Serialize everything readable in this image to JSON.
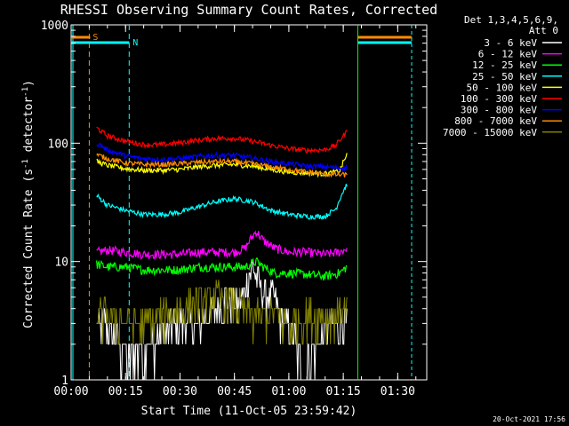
{
  "chart_data": {
    "type": "line",
    "title": "RHESSI Observing Summary Count Rates, Corrected",
    "xlabel": "Start Time (11-Oct-05 23:59:42)",
    "ylabel_main": "Corrected Count Rate (s",
    "ylabel_sup1": "-1",
    "ylabel_mid": " detector",
    "ylabel_sup2": "-1",
    "ylabel_end": ")",
    "yscale": "log",
    "ylim": [
      1,
      1000
    ],
    "xlim_min": [
      0,
      98
    ],
    "x_ticks": [
      {
        "min": 0,
        "label": "00:00"
      },
      {
        "min": 15,
        "label": "00:15"
      },
      {
        "min": 30,
        "label": "00:30"
      },
      {
        "min": 45,
        "label": "00:45"
      },
      {
        "min": 60,
        "label": "01:00"
      },
      {
        "min": 75,
        "label": "01:15"
      },
      {
        "min": 90,
        "label": "01:30"
      }
    ],
    "y_ticks": [
      {
        "value": 1,
        "label": "1"
      },
      {
        "value": 10,
        "label": "10"
      },
      {
        "value": 100,
        "label": "100"
      },
      {
        "value": 1000,
        "label": "1000"
      }
    ],
    "legend_header": [
      "Det 1,3,4,5,6,9,",
      "Att 0"
    ],
    "legend_position": "right",
    "timestamp": "20-Oct-2021 17:56",
    "markers": [
      {
        "label": "S",
        "color": "#ff8c00",
        "min": 5
      },
      {
        "label": "N",
        "color": "#00ffff",
        "min": 16
      }
    ],
    "series": [
      {
        "name": "3 - 6 keV",
        "color": "#ffffff",
        "x": [
          7,
          10,
          13,
          16,
          20,
          25,
          30,
          35,
          40,
          43,
          46,
          48,
          50,
          52,
          54,
          56,
          58,
          60,
          63,
          66,
          70,
          73,
          76
        ],
        "y": [
          3,
          3,
          2,
          1.5,
          1.8,
          2.5,
          3,
          3,
          4,
          5,
          4,
          6,
          9,
          6,
          5,
          5,
          3,
          3,
          1.5,
          1.5,
          2.5,
          3,
          3
        ]
      },
      {
        "name": "6 - 12 keV",
        "color": "#ff00ff",
        "x": [
          7,
          10,
          15,
          20,
          25,
          30,
          35,
          40,
          45,
          48,
          51,
          53,
          56,
          60,
          65,
          70,
          74,
          76
        ],
        "y": [
          12,
          12.5,
          12,
          11.5,
          11.5,
          11.5,
          12,
          12,
          12,
          13,
          18,
          15,
          13,
          12,
          12,
          11.5,
          12,
          13
        ]
      },
      {
        "name": "12 - 25 keV",
        "color": "#00ff00",
        "x": [
          7,
          10,
          15,
          20,
          25,
          30,
          35,
          40,
          45,
          48,
          51,
          53,
          56,
          60,
          65,
          70,
          74,
          76
        ],
        "y": [
          9.5,
          9,
          9,
          8.5,
          8.5,
          8.5,
          9,
          9,
          9,
          9,
          10,
          9,
          8,
          8,
          7.8,
          7.5,
          8,
          9
        ]
      },
      {
        "name": "25 - 50 keV",
        "color": "#00ffff",
        "x": [
          7,
          10,
          15,
          20,
          25,
          30,
          35,
          40,
          45,
          50,
          55,
          60,
          65,
          70,
          73,
          76
        ],
        "y": [
          36,
          30,
          27,
          25,
          25,
          26,
          29,
          32,
          34,
          32,
          27,
          25,
          24,
          24,
          28,
          45
        ]
      },
      {
        "name": "50 - 100 keV",
        "color": "#ffff00",
        "x": [
          7,
          10,
          15,
          20,
          25,
          30,
          35,
          40,
          45,
          50,
          55,
          60,
          65,
          70,
          74,
          76
        ],
        "y": [
          70,
          65,
          61,
          59,
          59,
          60,
          63,
          65,
          66,
          64,
          60,
          57,
          56,
          55,
          58,
          80
        ]
      },
      {
        "name": "100 - 300 keV",
        "color": "#ff0000",
        "x": [
          7,
          10,
          15,
          20,
          25,
          30,
          35,
          40,
          45,
          50,
          55,
          60,
          65,
          70,
          73,
          76
        ],
        "y": [
          135,
          115,
          104,
          97,
          97,
          101,
          106,
          110,
          110,
          104,
          96,
          90,
          87,
          88,
          96,
          125
        ]
      },
      {
        "name": "300 - 800 keV",
        "color": "#0000ff",
        "x": [
          7,
          10,
          15,
          20,
          25,
          30,
          35,
          40,
          45,
          50,
          55,
          60,
          65,
          70,
          74,
          76
        ],
        "y": [
          100,
          88,
          78,
          74,
          73,
          74,
          77,
          79,
          79,
          75,
          70,
          67,
          64,
          63,
          62,
          62
        ]
      },
      {
        "name": "800 - 7000 keV",
        "color": "#ff8c00",
        "x": [
          7,
          10,
          15,
          20,
          25,
          30,
          35,
          40,
          45,
          50,
          55,
          60,
          65,
          70,
          74,
          76
        ],
        "y": [
          80,
          74,
          68,
          66,
          66,
          67,
          69,
          70,
          70,
          67,
          63,
          60,
          57,
          55,
          54,
          54
        ]
      },
      {
        "name": "7000 - 15000 keV",
        "color": "#808000",
        "x": [
          7,
          10,
          15,
          20,
          25,
          30,
          35,
          40,
          45,
          50,
          55,
          60,
          65,
          70,
          74,
          76
        ],
        "y": [
          3.5,
          3.5,
          3,
          3,
          3.5,
          4,
          4.5,
          5,
          4.5,
          3.5,
          3.5,
          3,
          3.5,
          3.5,
          3.5,
          4
        ]
      }
    ]
  }
}
